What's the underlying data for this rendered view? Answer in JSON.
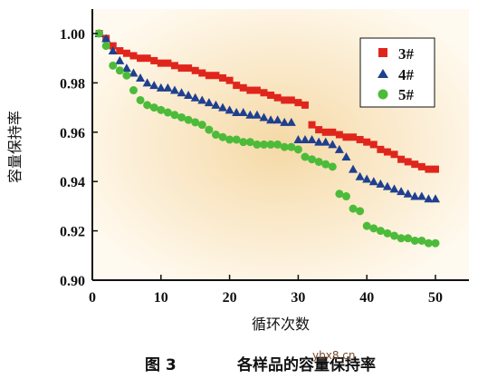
{
  "caption": {
    "figure": "图 3",
    "title": "各样品的容量保持率"
  },
  "watermark": "ybx8.cn",
  "colors": {
    "s3": "#e0261c",
    "s4": "#1f3f8f",
    "s5": "#4dbb3a",
    "bg_center": "#f5d9a6",
    "bg_edge": "#fffaf0"
  },
  "chart_data": {
    "type": "scatter",
    "title": "",
    "xlabel": "循环次数",
    "ylabel": "容量保持率",
    "xlim": [
      0,
      55
    ],
    "ylim": [
      0.9,
      1.01
    ],
    "xticks": [
      0,
      10,
      20,
      30,
      40,
      50
    ],
    "yticks": [
      0.9,
      0.92,
      0.94,
      0.96,
      0.98,
      1.0
    ],
    "xtick_labels": [
      "0",
      "10",
      "20",
      "30",
      "40",
      "50"
    ],
    "ytick_labels": [
      "0.90",
      "0.92",
      "0.94",
      "0.96",
      "0.98",
      "1.00"
    ],
    "grid": false,
    "legend_position": "top-right",
    "x": [
      1,
      2,
      3,
      4,
      5,
      6,
      7,
      8,
      9,
      10,
      11,
      12,
      13,
      14,
      15,
      16,
      17,
      18,
      19,
      20,
      21,
      22,
      23,
      24,
      25,
      26,
      27,
      28,
      29,
      30,
      31,
      32,
      33,
      34,
      35,
      36,
      37,
      38,
      39,
      40,
      41,
      42,
      43,
      44,
      45,
      46,
      47,
      48,
      49,
      50
    ],
    "series": [
      {
        "name": "3#",
        "marker": "square",
        "values": [
          1.0,
          0.998,
          0.995,
          0.993,
          0.992,
          0.991,
          0.99,
          0.99,
          0.989,
          0.988,
          0.988,
          0.987,
          0.986,
          0.986,
          0.985,
          0.984,
          0.983,
          0.983,
          0.982,
          0.981,
          0.979,
          0.978,
          0.977,
          0.977,
          0.976,
          0.975,
          0.974,
          0.973,
          0.973,
          0.972,
          0.971,
          0.963,
          0.961,
          0.96,
          0.96,
          0.959,
          0.958,
          0.958,
          0.957,
          0.956,
          0.955,
          0.953,
          0.952,
          0.951,
          0.949,
          0.948,
          0.947,
          0.946,
          0.945,
          0.945
        ]
      },
      {
        "name": "4#",
        "marker": "triangle",
        "values": [
          1.0,
          0.998,
          0.993,
          0.989,
          0.986,
          0.984,
          0.982,
          0.98,
          0.979,
          0.978,
          0.978,
          0.977,
          0.976,
          0.975,
          0.974,
          0.973,
          0.972,
          0.971,
          0.97,
          0.969,
          0.968,
          0.968,
          0.967,
          0.967,
          0.966,
          0.965,
          0.965,
          0.964,
          0.964,
          0.957,
          0.957,
          0.957,
          0.956,
          0.956,
          0.955,
          0.953,
          0.95,
          0.945,
          0.942,
          0.941,
          0.94,
          0.939,
          0.938,
          0.937,
          0.936,
          0.935,
          0.934,
          0.934,
          0.933,
          0.933
        ]
      },
      {
        "name": "5#",
        "marker": "circle",
        "values": [
          1.0,
          0.995,
          0.987,
          0.985,
          0.983,
          0.977,
          0.973,
          0.971,
          0.97,
          0.969,
          0.968,
          0.967,
          0.966,
          0.965,
          0.964,
          0.963,
          0.961,
          0.959,
          0.958,
          0.957,
          0.957,
          0.956,
          0.956,
          0.955,
          0.955,
          0.955,
          0.955,
          0.954,
          0.954,
          0.953,
          0.95,
          0.949,
          0.948,
          0.947,
          0.946,
          0.935,
          0.934,
          0.929,
          0.928,
          0.922,
          0.921,
          0.92,
          0.919,
          0.918,
          0.917,
          0.917,
          0.916,
          0.916,
          0.915,
          0.915
        ]
      }
    ]
  }
}
